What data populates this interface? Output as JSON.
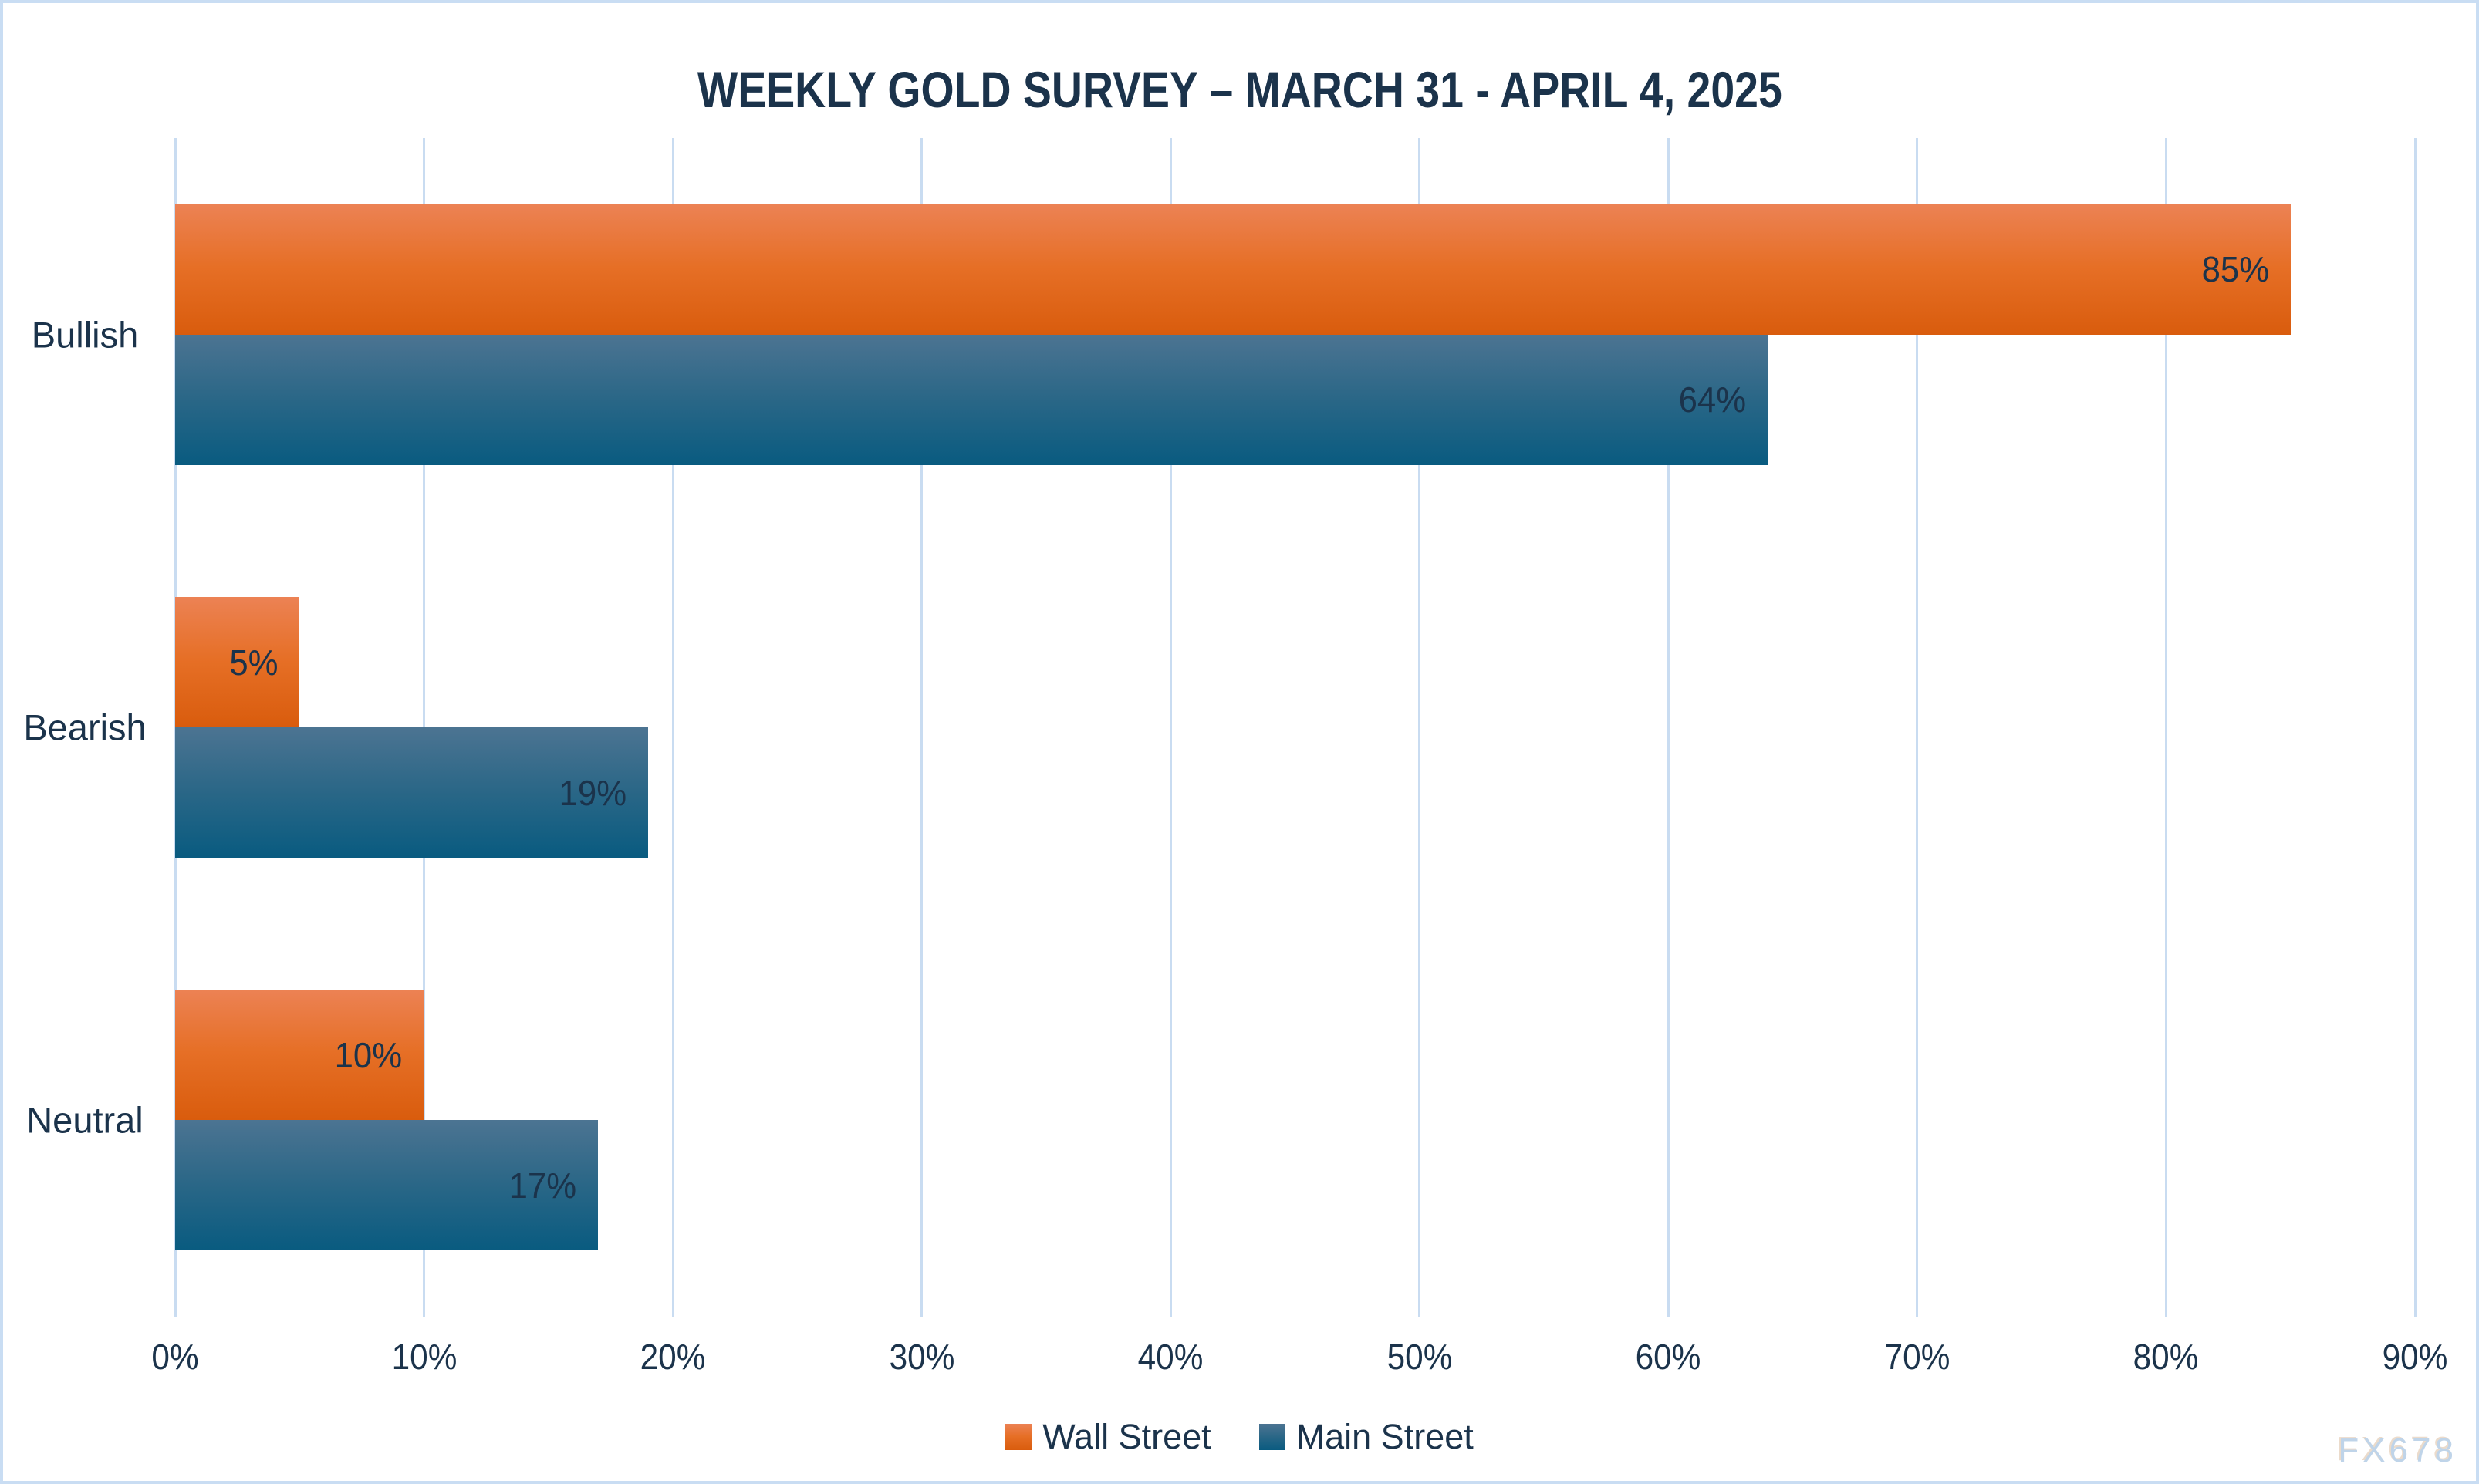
{
  "title": "WEEKLY GOLD SURVEY – MARCH 31 - APRIL 4, 2025",
  "watermark": "FX678",
  "colors": {
    "title_text": "#1b334b",
    "label_text": "#1b334b",
    "gridline": "#c9dcf1",
    "frame_border": "#c9ddf3",
    "wall_street_gradient_top": "#ec8254",
    "wall_street_gradient_mid": "#e66f26",
    "wall_street_gradient_bottom": "#d95c0d",
    "main_street_gradient_top": "#4c7492",
    "main_street_gradient_mid": "#2b6787",
    "main_street_gradient_bottom": "#095b80",
    "watermark_text": "#bfd4e9"
  },
  "chart_data": {
    "type": "bar",
    "orientation": "horizontal",
    "title": "WEEKLY GOLD SURVEY – MARCH 31 - APRIL 4, 2025",
    "categories": [
      "Bullish",
      "Bearish",
      "Neutral"
    ],
    "series": [
      {
        "name": "Wall Street",
        "color_key": "wall_street",
        "values": [
          85,
          5,
          10
        ],
        "labels": [
          "85%",
          "5%",
          "10%"
        ]
      },
      {
        "name": "Main Street",
        "color_key": "main_street",
        "values": [
          64,
          19,
          17
        ],
        "labels": [
          "64%",
          "19%",
          "17%"
        ]
      }
    ],
    "xlabel": "",
    "ylabel": "",
    "xlim": [
      0,
      90
    ],
    "x_tick_step": 10,
    "x_tick_labels": [
      "0%",
      "10%",
      "20%",
      "30%",
      "40%",
      "50%",
      "60%",
      "70%",
      "80%",
      "90%"
    ],
    "grid": "vertical-on",
    "legend_position": "bottom-center",
    "data_label_position": "inside-end"
  }
}
